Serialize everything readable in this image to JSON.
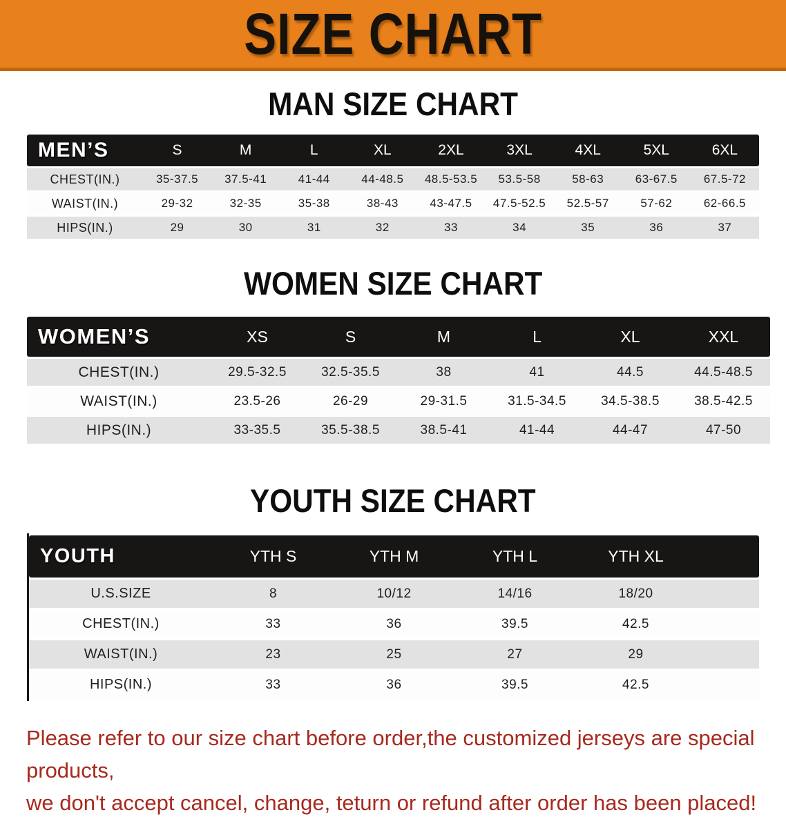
{
  "banner": {
    "title": "SIZE CHART"
  },
  "sections": [
    {
      "heading": "MAN SIZE CHART",
      "corner_label": "MEN’S",
      "sizes": [
        "S",
        "M",
        "L",
        "XL",
        "2XL",
        "3XL",
        "4XL",
        "5XL",
        "6XL"
      ],
      "rows": [
        {
          "label": "CHEST(IN.)",
          "values": [
            "35-37.5",
            "37.5-41",
            "41-44",
            "44-48.5",
            "48.5-53.5",
            "53.5-58",
            "58-63",
            "63-67.5",
            "67.5-72"
          ]
        },
        {
          "label": "WAIST(IN.)",
          "values": [
            "29-32",
            "32-35",
            "35-38",
            "38-43",
            "43-47.5",
            "47.5-52.5",
            "52.5-57",
            "57-62",
            "62-66.5"
          ]
        },
        {
          "label": "HIPS(IN.)",
          "values": [
            "29",
            "30",
            "31",
            "32",
            "33",
            "34",
            "35",
            "36",
            "37"
          ]
        }
      ]
    },
    {
      "heading": "WOMEN SIZE CHART",
      "corner_label": "WOMEN’S",
      "sizes": [
        "XS",
        "S",
        "M",
        "L",
        "XL",
        "XXL"
      ],
      "rows": [
        {
          "label": "CHEST(IN.)",
          "values": [
            "29.5-32.5",
            "32.5-35.5",
            "38",
            "41",
            "44.5",
            "44.5-48.5"
          ]
        },
        {
          "label": "WAIST(IN.)",
          "values": [
            "23.5-26",
            "26-29",
            "29-31.5",
            "31.5-34.5",
            "34.5-38.5",
            "38.5-42.5"
          ]
        },
        {
          "label": "HIPS(IN.)",
          "values": [
            "33-35.5",
            "35.5-38.5",
            "38.5-41",
            "41-44",
            "44-47",
            "47-50"
          ]
        }
      ]
    },
    {
      "heading": "YOUTH SIZE CHART",
      "corner_label": "YOUTH",
      "sizes": [
        "YTH S",
        "YTH M",
        "YTH L",
        "YTH XL"
      ],
      "rows": [
        {
          "label": "U.S.SIZE",
          "values": [
            "8",
            "10/12",
            "14/16",
            "18/20"
          ]
        },
        {
          "label": "CHEST(IN.)",
          "values": [
            "33",
            "36",
            "39.5",
            "42.5"
          ]
        },
        {
          "label": "WAIST(IN.)",
          "values": [
            "23",
            "25",
            "27",
            "29"
          ]
        },
        {
          "label": "HIPS(IN.)",
          "values": [
            "33",
            "36",
            "39.5",
            "42.5"
          ]
        }
      ]
    }
  ],
  "footer": {
    "line1": "Please refer to our size chart before order,the customized jerseys are special products,",
    "line2": "we don't accept cancel, change, teturn or refund after order has been placed!"
  },
  "colors": {
    "banner_orange": "#E8811B",
    "banner_border": "#C2660D",
    "header_black": "#181515",
    "row_gray": "#E1E2E1",
    "row_white": "#FDFDFD",
    "footer_red": "#A7291E"
  }
}
